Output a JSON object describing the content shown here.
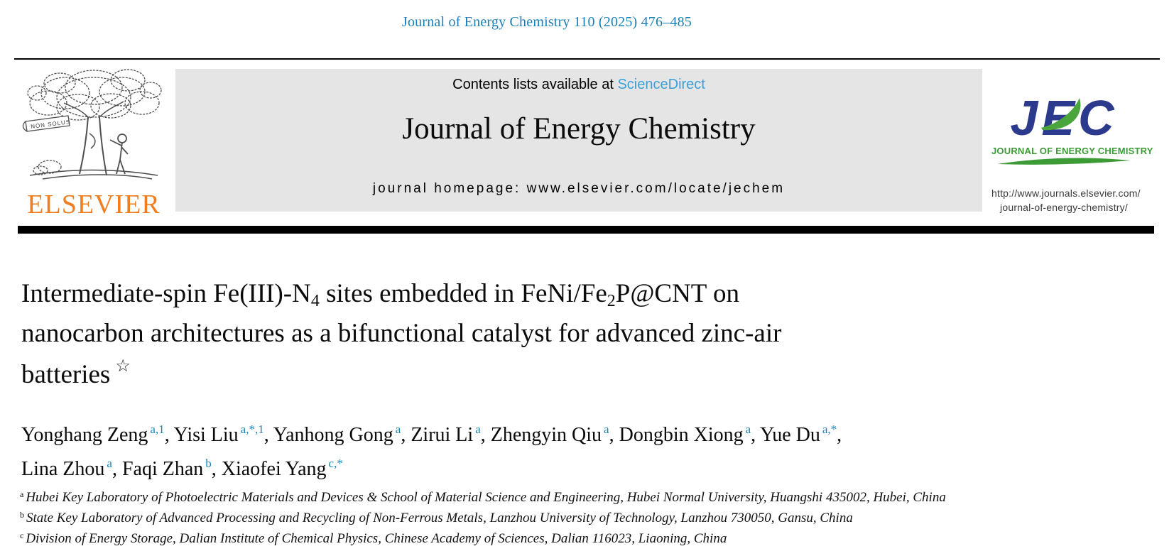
{
  "header": {
    "citation": "Journal of Energy Chemistry 110 (2025) 476–485"
  },
  "masthead": {
    "contents_prefix": "Contents lists available at ",
    "sciencedirect_link": "ScienceDirect",
    "journal_title": "Journal of Energy Chemistry",
    "homepage_label": "journal homepage: ",
    "homepage_url": "www.elsevier.com/locate/jechem"
  },
  "elsevier": {
    "banner": "NON SOLUS",
    "wordmark": "ELSEVIER"
  },
  "jec": {
    "acronym": "JEC",
    "name": "JOURNAL OF ENERGY CHEMISTRY",
    "url_line1": "http://www.journals.elsevier.com/",
    "url_line2": "journal-of-energy-chemistry/"
  },
  "article": {
    "title_lines": [
      {
        "segments": [
          {
            "text": "Intermediate-spin Fe(III)-N"
          },
          {
            "sub": "4"
          },
          {
            "text": " sites embedded in FeNi/Fe"
          },
          {
            "sub": "2"
          },
          {
            "text": "P@CNT on"
          }
        ]
      },
      {
        "segments": [
          {
            "text": "nanocarbon architectures as a bifunctional catalyst for advanced zinc-air"
          }
        ]
      },
      {
        "segments": [
          {
            "text": "batteries"
          },
          {
            "sup": "☆"
          }
        ]
      }
    ],
    "authors_line1": [
      {
        "name": "Yonghang Zeng",
        "sup": "a,1"
      },
      {
        "name": "Yisi Liu",
        "sup": "a,*,1"
      },
      {
        "name": "Yanhong Gong",
        "sup": "a"
      },
      {
        "name": "Zirui Li",
        "sup": "a"
      },
      {
        "name": "Zhengyin Qiu",
        "sup": "a"
      },
      {
        "name": "Dongbin Xiong",
        "sup": "a"
      },
      {
        "name": "Yue Du",
        "sup": "a,*"
      }
    ],
    "authors_line2": [
      {
        "name": "Lina Zhou",
        "sup": "a"
      },
      {
        "name": "Faqi Zhan",
        "sup": "b"
      },
      {
        "name": "Xiaofei Yang",
        "sup": "c,*"
      }
    ],
    "affiliations": [
      {
        "sup": "a",
        "text": "Hubei Key Laboratory of Photoelectric Materials and Devices & School of Material Science and Engineering, Hubei Normal University, Huangshi 435002, Hubei, China"
      },
      {
        "sup": "b",
        "text": "State Key Laboratory of Advanced Processing and Recycling of Non-Ferrous Metals, Lanzhou University of Technology, Lanzhou 730050, Gansu, China"
      },
      {
        "sup": "c",
        "text": "Division of Energy Storage, Dalian Institute of Chemical Physics, Chinese Academy of Sciences, Dalian 116023, Liaoning, China"
      }
    ]
  },
  "colors": {
    "link_teal": "#1a80b6",
    "sciencedirect_blue": "#3aa0d8",
    "superscript_teal": "#1b86ba",
    "elsevier_orange": "#ee7e20",
    "jec_navy": "#2c3a8e",
    "jec_green": "#3c9b35",
    "masthead_gray": "#e5e5e5"
  }
}
